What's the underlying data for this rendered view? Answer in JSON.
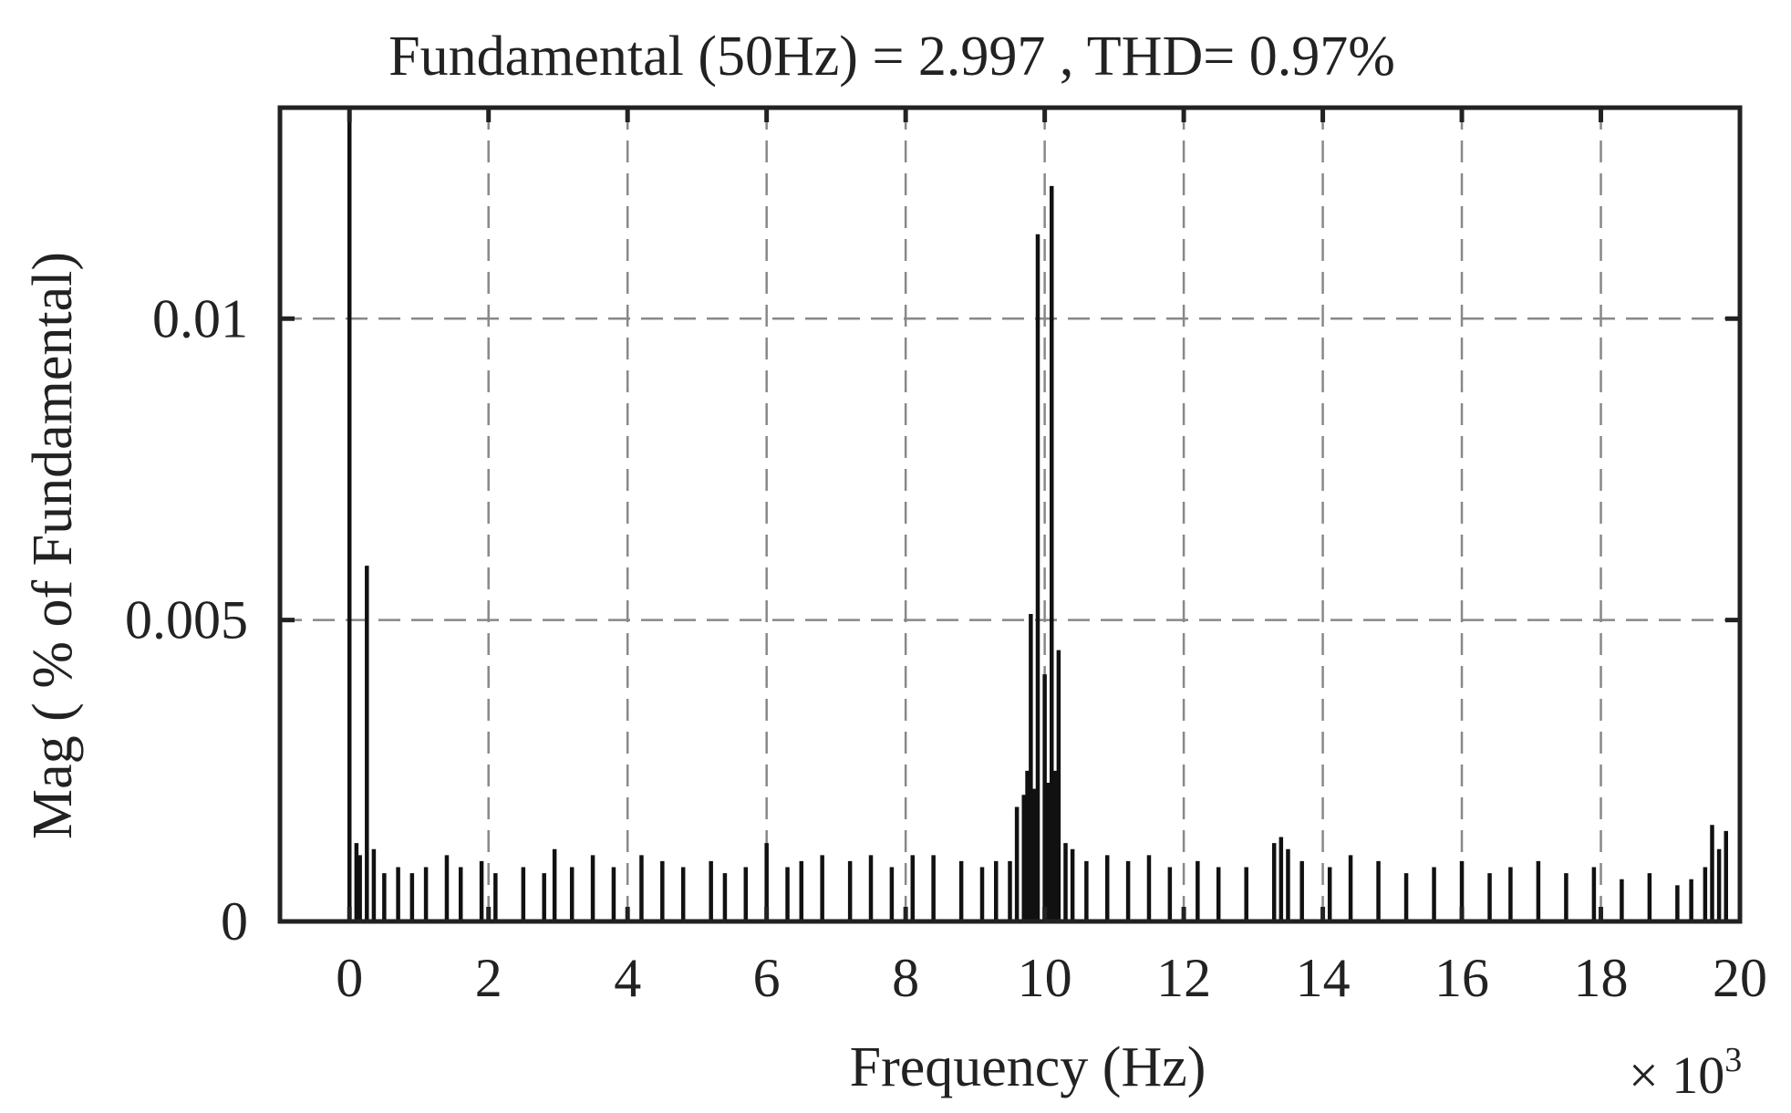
{
  "chart_data": {
    "type": "bar",
    "title": "Fundamental (50Hz) = 2.997 , THD= 0.97%",
    "xlabel": "Frequency (Hz)",
    "ylabel": "Mag ( % of Fundamental)",
    "x_multiplier": {
      "base": "× 10",
      "exponent": "3"
    },
    "xlim": [
      -1,
      20
    ],
    "ylim": [
      0,
      0.0135
    ],
    "x_ticks": [
      0,
      2,
      4,
      6,
      8,
      10,
      12,
      14,
      16,
      18,
      20
    ],
    "x_tick_labels": [
      "0",
      "2",
      "4",
      "6",
      "8",
      "10",
      "12",
      "14",
      "16",
      "18",
      "20"
    ],
    "y_ticks": [
      0,
      0.005,
      0.01
    ],
    "y_tick_labels": [
      "0",
      "0.005",
      "0.01"
    ],
    "grid": true,
    "series": [
      {
        "x": [
          0.0,
          0.1,
          0.15,
          0.25,
          0.35,
          0.5,
          0.7,
          0.9,
          1.1,
          1.4,
          1.6,
          1.9,
          2.1,
          2.5,
          2.8,
          2.95,
          3.2,
          3.5,
          3.8,
          4.2,
          4.5,
          4.8,
          5.2,
          5.4,
          5.7,
          6.0,
          6.3,
          6.5,
          6.8,
          7.2,
          7.5,
          7.8,
          8.1,
          8.4,
          8.8,
          9.1,
          9.3,
          9.5,
          9.6,
          9.7,
          9.75,
          9.8,
          9.85,
          9.9,
          10.0,
          10.05,
          10.1,
          10.15,
          10.2,
          10.3,
          10.4,
          10.6,
          10.9,
          11.2,
          11.5,
          11.8,
          12.2,
          12.5,
          12.9,
          13.3,
          13.4,
          13.5,
          13.7,
          14.1,
          14.4,
          14.8,
          15.2,
          15.6,
          16.0,
          16.4,
          16.7,
          17.1,
          17.5,
          17.9,
          18.3,
          18.7,
          19.1,
          19.3,
          19.5,
          19.6,
          19.7,
          19.8
        ],
        "values": [
          0.0155,
          0.0013,
          0.0011,
          0.0059,
          0.0012,
          0.0008,
          0.0009,
          0.0008,
          0.0009,
          0.0011,
          0.0009,
          0.001,
          0.0008,
          0.0009,
          0.0008,
          0.0012,
          0.0009,
          0.0011,
          0.0009,
          0.0011,
          0.001,
          0.0009,
          0.001,
          0.0008,
          0.0009,
          0.0013,
          0.0009,
          0.001,
          0.0011,
          0.001,
          0.0011,
          0.0009,
          0.0011,
          0.0011,
          0.001,
          0.0009,
          0.001,
          0.001,
          0.0019,
          0.0021,
          0.0025,
          0.0051,
          0.0022,
          0.0114,
          0.0041,
          0.0023,
          0.0122,
          0.0025,
          0.0045,
          0.0013,
          0.0012,
          0.001,
          0.0011,
          0.001,
          0.0011,
          0.0009,
          0.001,
          0.0009,
          0.0009,
          0.0013,
          0.0014,
          0.0012,
          0.001,
          0.0009,
          0.0011,
          0.001,
          0.0008,
          0.0009,
          0.001,
          0.0008,
          0.0009,
          0.001,
          0.0008,
          0.0009,
          0.0007,
          0.0008,
          0.0006,
          0.0007,
          0.0009,
          0.0016,
          0.0012,
          0.0015
        ]
      }
    ]
  }
}
